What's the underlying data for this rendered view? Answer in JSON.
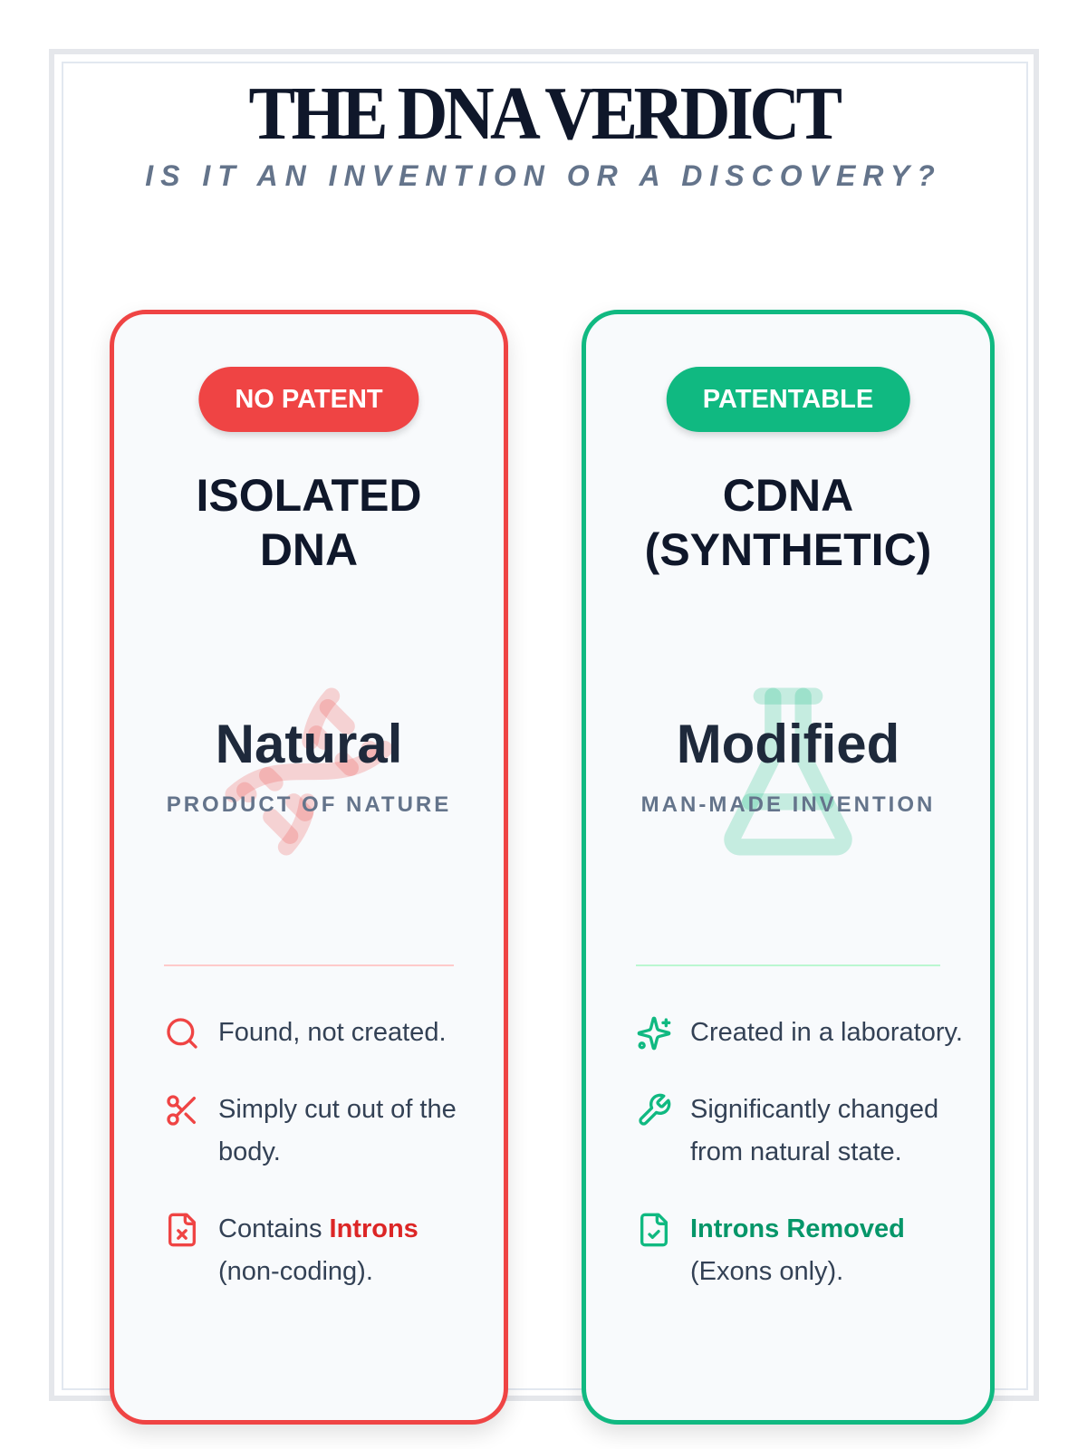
{
  "header": {
    "title": "THE DNA VERDICT",
    "subtitle": "IS IT AN INVENTION OR A DISCOVERY?"
  },
  "colors": {
    "red": "#ef4444",
    "green": "#10b981",
    "text": "#334155",
    "muted": "#64748b"
  },
  "cards": [
    {
      "badge": "NO PATENT",
      "heading_line1": "ISOLATED",
      "heading_line2": "DNA",
      "watermark_icon": "dna-icon",
      "verdict": "Natural",
      "verdict_sub": "PRODUCT OF NATURE",
      "items": [
        {
          "icon": "search-icon",
          "text": "Found, not created."
        },
        {
          "icon": "scissors-icon",
          "text": "Simply cut out of the body."
        },
        {
          "icon": "file-x-icon",
          "prefix": "Contains ",
          "highlight": "Introns",
          "suffix": " (non-coding)."
        }
      ]
    },
    {
      "badge": "PATENTABLE",
      "heading_line1": "CDNA",
      "heading_line2": "(SYNTHETIC)",
      "watermark_icon": "flask-icon",
      "verdict": "Modified",
      "verdict_sub": "MAN-MADE INVENTION",
      "items": [
        {
          "icon": "sparkles-icon",
          "text": "Created in a laboratory."
        },
        {
          "icon": "wrench-icon",
          "text": "Significantly changed from natural state."
        },
        {
          "icon": "file-check-icon",
          "highlight": "Introns Removed",
          "suffix": " (Exons only)."
        }
      ]
    }
  ]
}
